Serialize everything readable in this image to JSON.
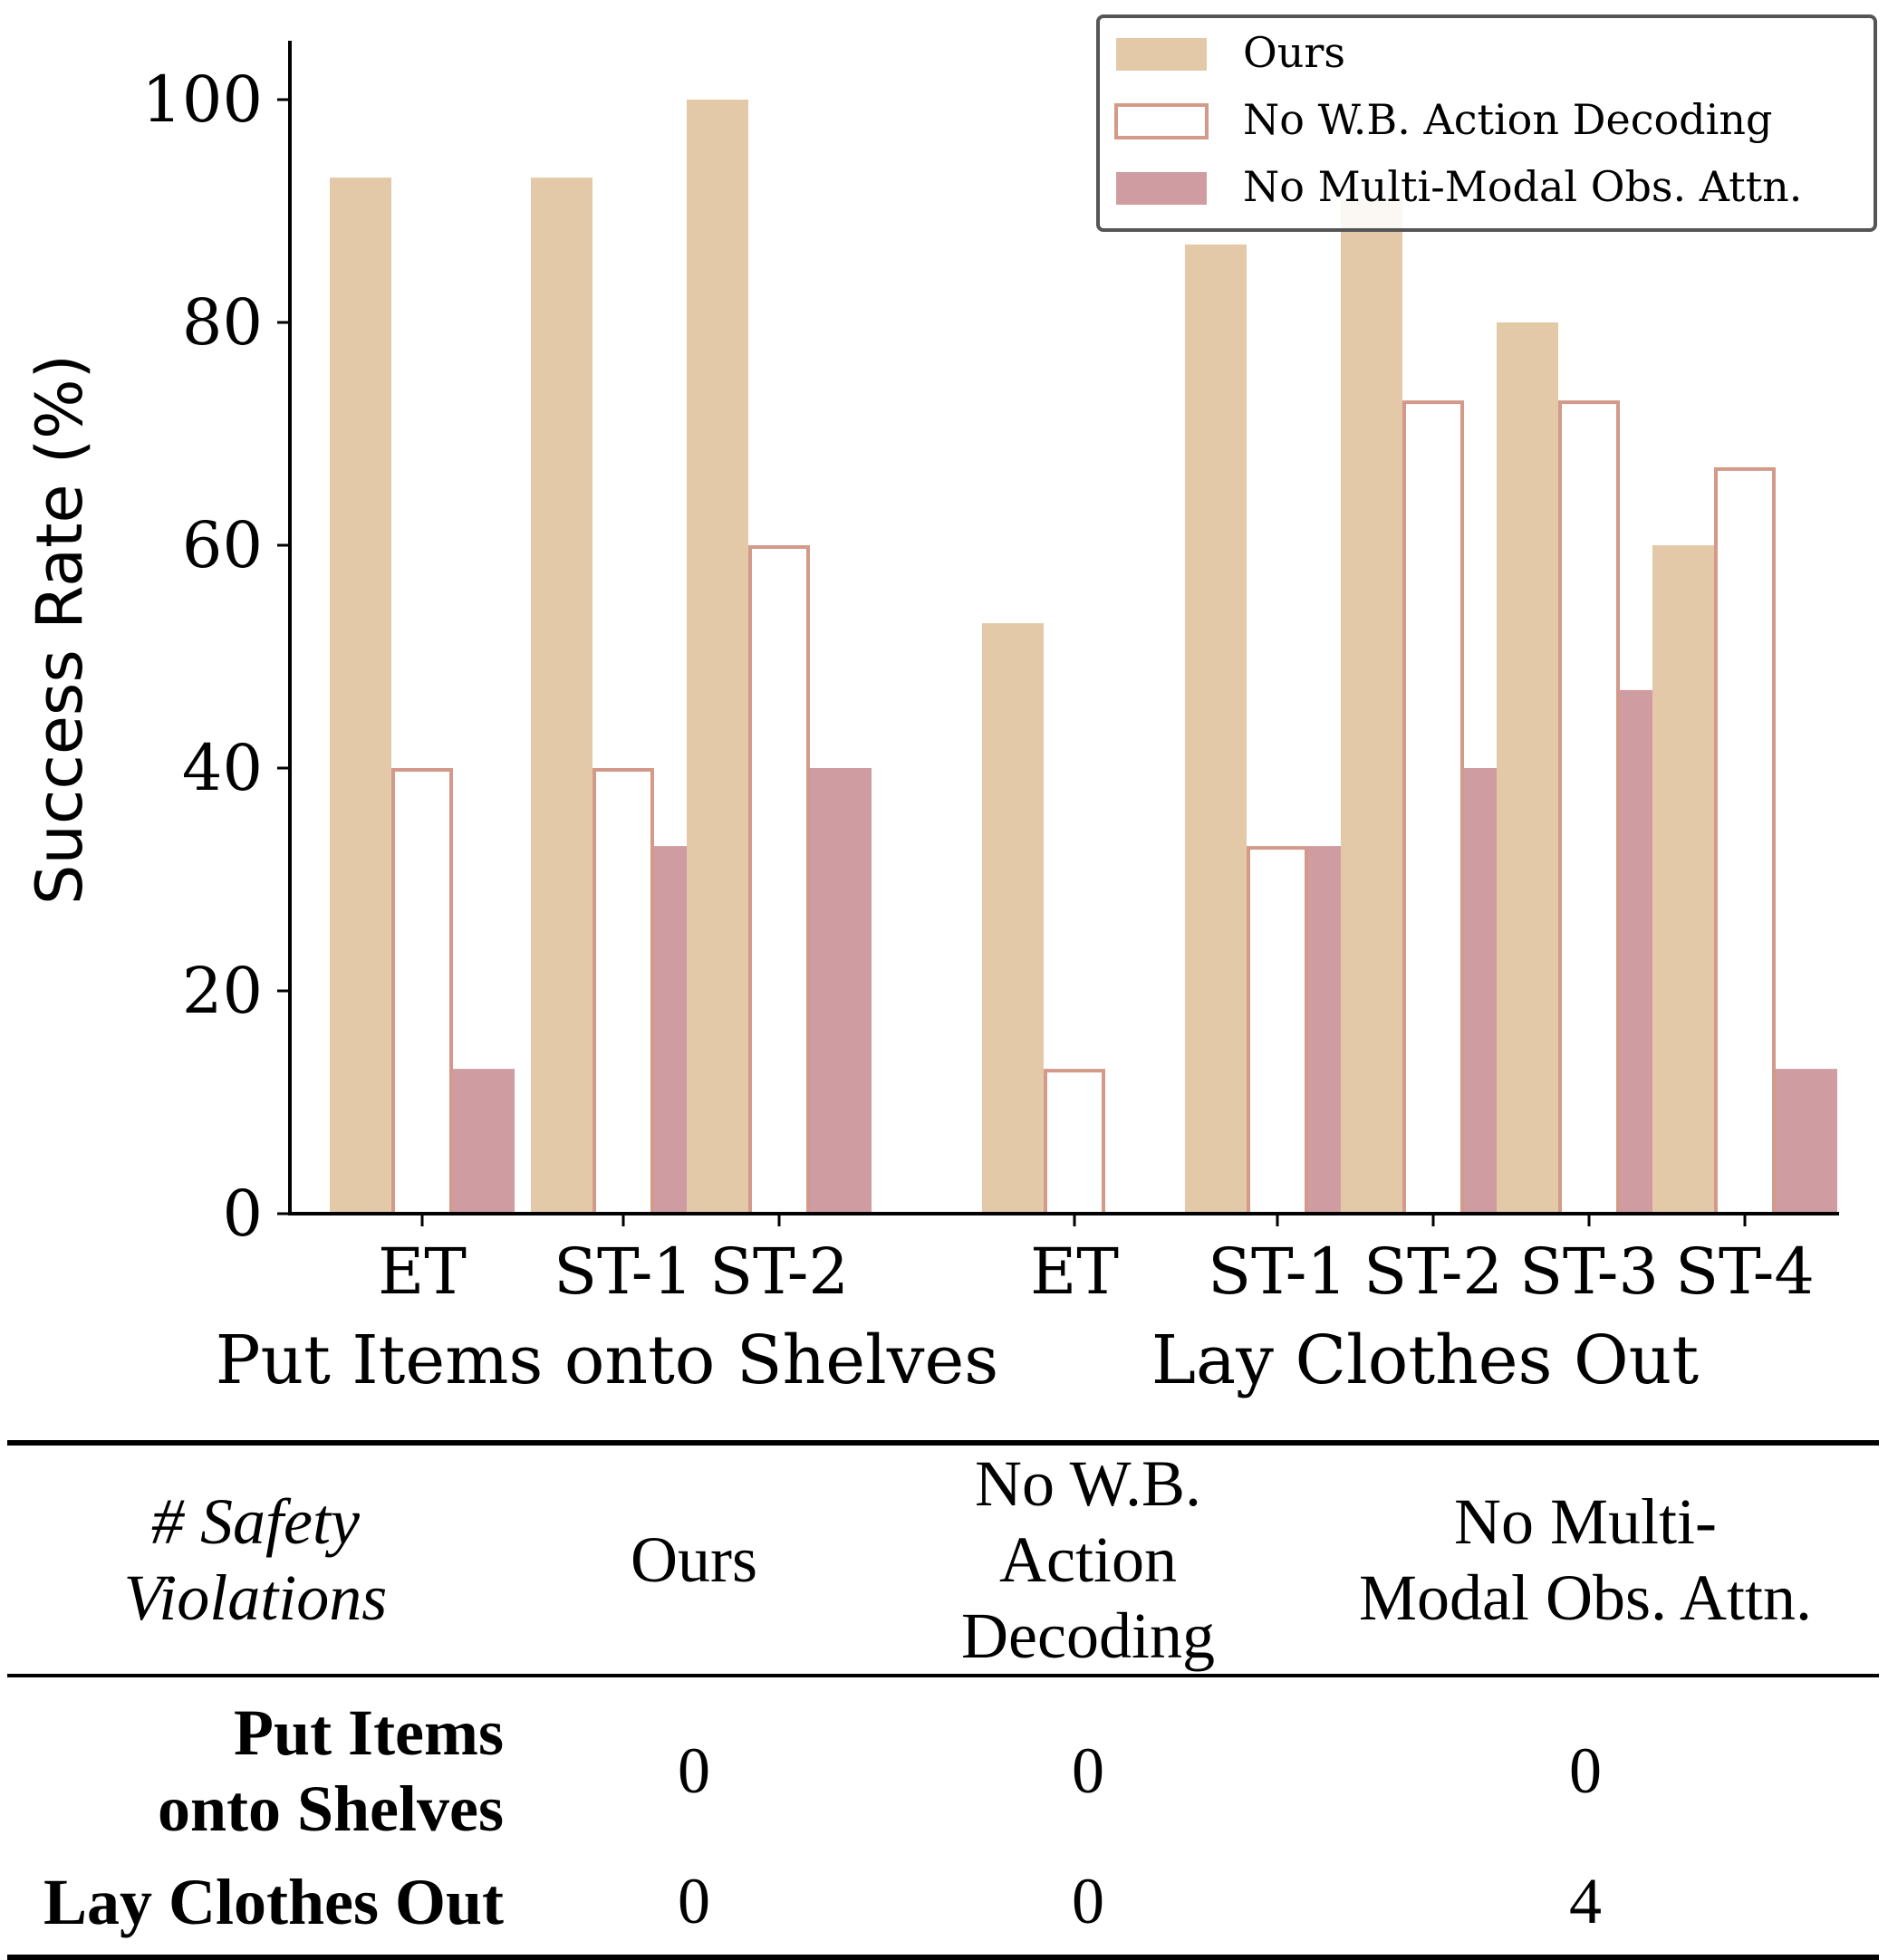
{
  "chart_data": {
    "type": "bar",
    "ylabel": "Success Rate (%)",
    "ylim": [
      0,
      105
    ],
    "yticks": [
      0,
      20,
      40,
      60,
      80,
      100
    ],
    "legend_position": "top-right",
    "grid": false,
    "series": [
      {
        "name": "Ours",
        "color": "#e3c9a8",
        "style": "filled"
      },
      {
        "name": "No W.B. Action Decoding",
        "color": "#d39a8a",
        "style": "outline"
      },
      {
        "name": "No Multi-Modal Obs. Attn.",
        "color": "#cf9da1",
        "style": "filled"
      }
    ],
    "groups": [
      {
        "name": "Put Items onto Shelves",
        "categories": [
          {
            "label": "ET",
            "values": [
              93,
              40,
              13
            ]
          },
          {
            "label": "ST-1",
            "values": [
              93,
              40,
              33
            ]
          },
          {
            "label": "ST-2",
            "values": [
              100,
              60,
              40
            ]
          }
        ]
      },
      {
        "name": "Lay Clothes Out",
        "categories": [
          {
            "label": "ET",
            "values": [
              53,
              13,
              0
            ]
          },
          {
            "label": "ST-1",
            "values": [
              87,
              33,
              33
            ]
          },
          {
            "label": "ST-2",
            "values": [
              91,
              73,
              40
            ]
          },
          {
            "label": "ST-3",
            "values": [
              80,
              73,
              47
            ]
          },
          {
            "label": "ST-4",
            "values": [
              60,
              67,
              13
            ]
          }
        ]
      }
    ]
  },
  "table": {
    "corner_line1": "# Safety",
    "corner_line2": "Violations",
    "headers": [
      {
        "line1": "Ours",
        "line2": ""
      },
      {
        "line1": "No W.B.",
        "line2": "Action Decoding"
      },
      {
        "line1": "No Multi-",
        "line2": "Modal Obs. Attn."
      }
    ],
    "rows": [
      {
        "label_line1": "Put Items",
        "label_line2": "onto Shelves",
        "values": [
          "0",
          "0",
          "0"
        ]
      },
      {
        "label_line1": "Lay Clothes Out",
        "label_line2": "",
        "values": [
          "0",
          "0",
          "4"
        ]
      }
    ]
  }
}
